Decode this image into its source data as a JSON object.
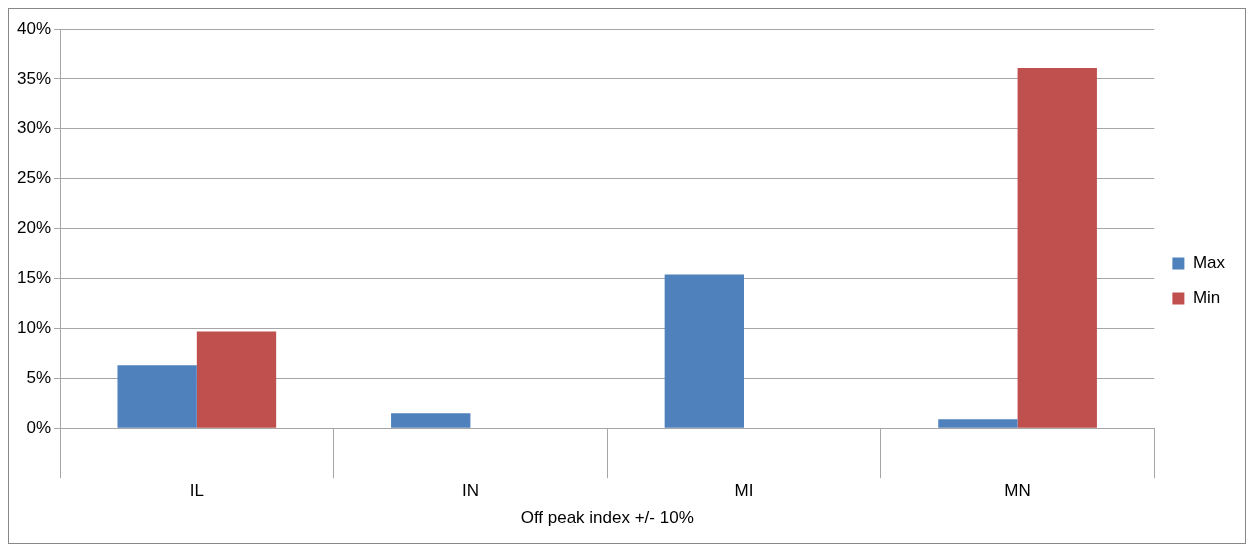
{
  "chart_data": {
    "type": "bar",
    "xlabel": "Off peak index +/- 10%",
    "categories": [
      "IL",
      "IN",
      "MI",
      "MN"
    ],
    "series": [
      {
        "name": "Max",
        "color": "#4f81bd",
        "values": [
          6.3,
          1.5,
          15.4,
          0.9
        ]
      },
      {
        "name": "Min",
        "color": "#c0504d",
        "values": [
          9.7,
          0,
          0,
          36.1
        ]
      }
    ],
    "ylim": [
      0,
      40
    ],
    "yticks": [
      {
        "value": 0,
        "label": "0%"
      },
      {
        "value": 5,
        "label": "5%"
      },
      {
        "value": 10,
        "label": "10%"
      },
      {
        "value": 15,
        "label": "15%"
      },
      {
        "value": 20,
        "label": "20%"
      },
      {
        "value": 25,
        "label": "25%"
      },
      {
        "value": 30,
        "label": "30%"
      },
      {
        "value": 35,
        "label": "35%"
      },
      {
        "value": 40,
        "label": "40%"
      }
    ],
    "grid": "y",
    "legend": "right"
  }
}
